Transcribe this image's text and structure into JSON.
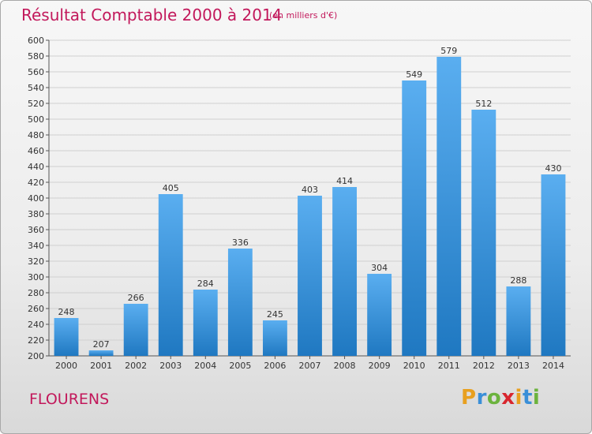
{
  "header": {
    "title": "Résultat Comptable 2000 à 2014",
    "subtitle": "(en milliers d'€)"
  },
  "footer": {
    "commune": "FLOURENS",
    "logo": "Proxiti"
  },
  "colors": {
    "title": "#c2185b",
    "bar_top": "#5aaef0",
    "bar_bottom": "#1f78c1",
    "grid": "#d0d0d0"
  },
  "chart_data": {
    "type": "bar",
    "title": "Résultat Comptable 2000 à 2014",
    "subtitle": "(en milliers d'€)",
    "categories": [
      "2000",
      "2001",
      "2002",
      "2003",
      "2004",
      "2005",
      "2006",
      "2007",
      "2008",
      "2009",
      "2010",
      "2011",
      "2012",
      "2013",
      "2014"
    ],
    "values": [
      248,
      207,
      266,
      405,
      284,
      336,
      245,
      403,
      414,
      304,
      549,
      579,
      512,
      288,
      430
    ],
    "ylim": [
      200,
      600
    ],
    "ytick_step": 20,
    "grid": true,
    "show_data_labels": true
  }
}
